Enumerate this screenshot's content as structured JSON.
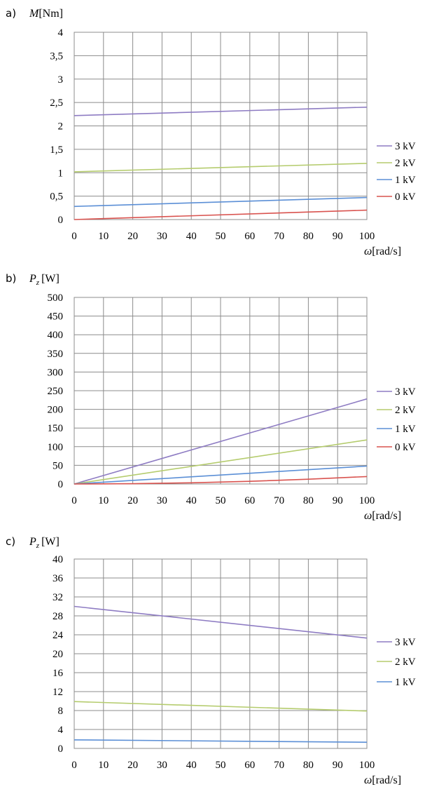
{
  "chart_data": [
    {
      "panel": "a)",
      "type": "line",
      "ylabel_main": "M",
      "ylabel_unit": "[Nm]",
      "ylabel_sub": "",
      "xlabel_main": "ω",
      "xlabel_unit": "[rad/s]",
      "xlim": [
        0,
        100
      ],
      "ylim": [
        0,
        4
      ],
      "x_ticks": [
        "0",
        "10",
        "20",
        "30",
        "40",
        "50",
        "60",
        "70",
        "80",
        "90",
        "100"
      ],
      "y_ticks": [
        "0",
        "0,5",
        "1",
        "1,5",
        "2",
        "2,5",
        "3",
        "3,5",
        "4"
      ],
      "grid": true,
      "legend_position": "right",
      "series": [
        {
          "name": "3 kV",
          "color": "#8e7cc3",
          "x": [
            0,
            100
          ],
          "y": [
            2.22,
            2.4
          ]
        },
        {
          "name": "2 kV",
          "color": "#b5cc6e",
          "x": [
            0,
            100
          ],
          "y": [
            1.02,
            1.2
          ]
        },
        {
          "name": "1 kV",
          "color": "#5b8fd6",
          "x": [
            0,
            100
          ],
          "y": [
            0.28,
            0.47
          ]
        },
        {
          "name": "0 kV",
          "color": "#d9534f",
          "x": [
            0,
            100
          ],
          "y": [
            0.0,
            0.2
          ]
        }
      ]
    },
    {
      "panel": "b)",
      "type": "line",
      "ylabel_main": "P",
      "ylabel_unit": "[W]",
      "ylabel_sub": "z",
      "xlabel_main": "ω",
      "xlabel_unit": "[rad/s]",
      "xlim": [
        0,
        100
      ],
      "ylim": [
        0,
        500
      ],
      "x_ticks": [
        "0",
        "10",
        "20",
        "30",
        "40",
        "50",
        "60",
        "70",
        "80",
        "90",
        "100"
      ],
      "y_ticks": [
        "0",
        "50",
        "100",
        "150",
        "200",
        "250",
        "300",
        "350",
        "400",
        "450",
        "500"
      ],
      "grid": true,
      "legend_position": "right",
      "series": [
        {
          "name": "3 kV",
          "color": "#8e7cc3",
          "x": [
            0,
            100
          ],
          "y": [
            0,
            228
          ]
        },
        {
          "name": "2 kV",
          "color": "#b5cc6e",
          "x": [
            0,
            100
          ],
          "y": [
            0,
            118
          ]
        },
        {
          "name": "1 kV",
          "color": "#5b8fd6",
          "x": [
            0,
            100
          ],
          "y": [
            0,
            48
          ]
        },
        {
          "name": "0 kV",
          "color": "#d9534f",
          "x": [
            0,
            20,
            40,
            60,
            80,
            100
          ],
          "y": [
            0,
            0.8,
            3.2,
            7.2,
            12.8,
            20
          ]
        }
      ]
    },
    {
      "panel": "c)",
      "type": "line",
      "ylabel_main": "P",
      "ylabel_unit": "[W]",
      "ylabel_sub": "z",
      "xlabel_main": "ω",
      "xlabel_unit": "[rad/s]",
      "xlim": [
        0,
        100
      ],
      "ylim": [
        0,
        40
      ],
      "x_ticks": [
        "0",
        "10",
        "20",
        "30",
        "40",
        "50",
        "60",
        "70",
        "80",
        "90",
        "100"
      ],
      "y_ticks": [
        "0",
        "4",
        "8",
        "12",
        "16",
        "20",
        "24",
        "28",
        "32",
        "36",
        "40"
      ],
      "grid": true,
      "legend_position": "right",
      "series": [
        {
          "name": "3 kV",
          "color": "#8e7cc3",
          "x": [
            0,
            100
          ],
          "y": [
            30,
            23.3
          ]
        },
        {
          "name": "2 kV",
          "color": "#b5cc6e",
          "x": [
            0,
            100
          ],
          "y": [
            9.9,
            7.9
          ]
        },
        {
          "name": "1 kV",
          "color": "#5b8fd6",
          "x": [
            0,
            100
          ],
          "y": [
            1.8,
            1.3
          ]
        }
      ]
    }
  ]
}
